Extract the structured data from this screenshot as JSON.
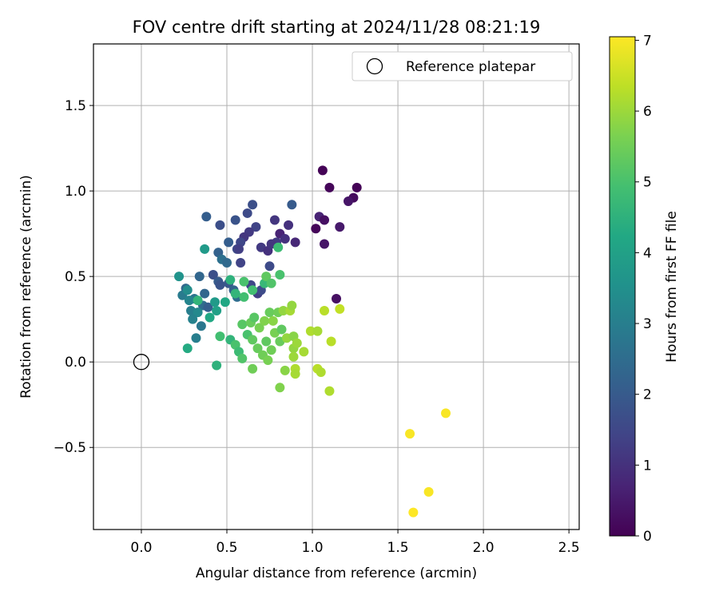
{
  "chart_data": {
    "type": "scatter",
    "title": "FOV centre drift starting at 2024/11/28 08:21:19",
    "xlabel": "Angular distance from reference (arcmin)",
    "ylabel": "Rotation from reference (arcmin)",
    "xlim": [
      -0.28,
      2.56
    ],
    "ylim": [
      -0.98,
      1.86
    ],
    "xticks": [
      0.0,
      0.5,
      1.0,
      1.5,
      2.0,
      2.5
    ],
    "xtick_labels": [
      "0.0",
      "0.5",
      "1.0",
      "1.5",
      "2.0",
      "2.5"
    ],
    "yticks": [
      -0.5,
      0.0,
      0.5,
      1.0,
      1.5
    ],
    "ytick_labels": [
      "−0.5",
      "0.0",
      "0.5",
      "1.0",
      "1.5"
    ],
    "grid": true,
    "legend": {
      "position": "top-right",
      "entries": [
        {
          "label": "Reference platepar",
          "marker": "open-circle"
        }
      ]
    },
    "reference_point": {
      "x": 0.0,
      "y": 0.0
    },
    "colorbar": {
      "label": "Hours from first FF file",
      "range": [
        0,
        7.05
      ],
      "ticks": [
        0,
        1,
        2,
        3,
        4,
        5,
        6,
        7
      ],
      "tick_labels": [
        "0",
        "1",
        "2",
        "3",
        "4",
        "5",
        "6",
        "7"
      ],
      "colormap": "viridis"
    },
    "points": [
      {
        "x": 1.06,
        "y": 1.12,
        "c": 0.05
      },
      {
        "x": 1.1,
        "y": 1.02,
        "c": 0.1
      },
      {
        "x": 1.26,
        "y": 1.02,
        "c": 0.05
      },
      {
        "x": 1.24,
        "y": 0.96,
        "c": 0.2
      },
      {
        "x": 1.21,
        "y": 0.94,
        "c": 0.4
      },
      {
        "x": 1.04,
        "y": 0.85,
        "c": 0.7
      },
      {
        "x": 1.07,
        "y": 0.83,
        "c": 0.3
      },
      {
        "x": 1.02,
        "y": 0.78,
        "c": 0.1
      },
      {
        "x": 1.16,
        "y": 0.79,
        "c": 0.5
      },
      {
        "x": 1.07,
        "y": 0.69,
        "c": 0.4
      },
      {
        "x": 0.9,
        "y": 0.7,
        "c": 0.8
      },
      {
        "x": 1.14,
        "y": 0.37,
        "c": 0.3
      },
      {
        "x": 0.86,
        "y": 0.8,
        "c": 1.0
      },
      {
        "x": 0.81,
        "y": 0.75,
        "c": 0.7
      },
      {
        "x": 0.84,
        "y": 0.72,
        "c": 1.0
      },
      {
        "x": 0.78,
        "y": 0.83,
        "c": 1.1
      },
      {
        "x": 0.79,
        "y": 0.7,
        "c": 1.2
      },
      {
        "x": 0.88,
        "y": 0.92,
        "c": 2.0
      },
      {
        "x": 0.65,
        "y": 0.92,
        "c": 1.7
      },
      {
        "x": 0.62,
        "y": 0.87,
        "c": 1.6
      },
      {
        "x": 0.67,
        "y": 0.79,
        "c": 1.4
      },
      {
        "x": 0.63,
        "y": 0.76,
        "c": 1.2
      },
      {
        "x": 0.6,
        "y": 0.73,
        "c": 1.1
      },
      {
        "x": 0.55,
        "y": 0.83,
        "c": 1.8
      },
      {
        "x": 0.46,
        "y": 0.8,
        "c": 1.7
      },
      {
        "x": 0.38,
        "y": 0.85,
        "c": 2.1
      },
      {
        "x": 0.7,
        "y": 0.67,
        "c": 1.2
      },
      {
        "x": 0.74,
        "y": 0.65,
        "c": 1.0
      },
      {
        "x": 0.76,
        "y": 0.69,
        "c": 1.1
      },
      {
        "x": 0.58,
        "y": 0.7,
        "c": 1.5
      },
      {
        "x": 0.56,
        "y": 0.66,
        "c": 1.6
      },
      {
        "x": 0.57,
        "y": 0.66,
        "c": 1.3
      },
      {
        "x": 0.51,
        "y": 0.7,
        "c": 2.1
      },
      {
        "x": 0.45,
        "y": 0.64,
        "c": 2.2
      },
      {
        "x": 0.47,
        "y": 0.6,
        "c": 2.6
      },
      {
        "x": 0.5,
        "y": 0.58,
        "c": 2.4
      },
      {
        "x": 0.58,
        "y": 0.58,
        "c": 1.4
      },
      {
        "x": 0.75,
        "y": 0.56,
        "c": 1.6
      },
      {
        "x": 0.42,
        "y": 0.51,
        "c": 1.7
      },
      {
        "x": 0.45,
        "y": 0.47,
        "c": 2.0
      },
      {
        "x": 0.46,
        "y": 0.45,
        "c": 1.8
      },
      {
        "x": 0.51,
        "y": 0.46,
        "c": 1.9
      },
      {
        "x": 0.54,
        "y": 0.42,
        "c": 2.2
      },
      {
        "x": 0.56,
        "y": 0.38,
        "c": 2.5
      },
      {
        "x": 0.64,
        "y": 0.45,
        "c": 1.5
      },
      {
        "x": 0.68,
        "y": 0.4,
        "c": 1.3
      },
      {
        "x": 0.7,
        "y": 0.42,
        "c": 1.6
      },
      {
        "x": 0.34,
        "y": 0.5,
        "c": 2.3
      },
      {
        "x": 0.37,
        "y": 0.4,
        "c": 2.3
      },
      {
        "x": 0.31,
        "y": 0.37,
        "c": 2.7
      },
      {
        "x": 0.36,
        "y": 0.33,
        "c": 2.5
      },
      {
        "x": 0.39,
        "y": 0.32,
        "c": 2.1
      },
      {
        "x": 0.26,
        "y": 0.43,
        "c": 2.4
      },
      {
        "x": 0.24,
        "y": 0.39,
        "c": 2.9
      },
      {
        "x": 0.28,
        "y": 0.36,
        "c": 3.2
      },
      {
        "x": 0.29,
        "y": 0.3,
        "c": 3.0
      },
      {
        "x": 0.33,
        "y": 0.29,
        "c": 3.3
      },
      {
        "x": 0.3,
        "y": 0.25,
        "c": 3.1
      },
      {
        "x": 0.35,
        "y": 0.21,
        "c": 2.8
      },
      {
        "x": 0.32,
        "y": 0.14,
        "c": 3.0
      },
      {
        "x": 0.22,
        "y": 0.5,
        "c": 3.6
      },
      {
        "x": 0.27,
        "y": 0.42,
        "c": 3.4
      },
      {
        "x": 0.43,
        "y": 0.35,
        "c": 3.8
      },
      {
        "x": 0.44,
        "y": 0.3,
        "c": 4.0
      },
      {
        "x": 0.4,
        "y": 0.26,
        "c": 4.2
      },
      {
        "x": 0.37,
        "y": 0.66,
        "c": 3.8
      },
      {
        "x": 0.27,
        "y": 0.08,
        "c": 4.3
      },
      {
        "x": 0.44,
        "y": -0.02,
        "c": 4.5
      },
      {
        "x": 0.33,
        "y": 0.36,
        "c": 4.6
      },
      {
        "x": 0.49,
        "y": 0.35,
        "c": 4.2
      },
      {
        "x": 0.52,
        "y": 0.48,
        "c": 4.5
      },
      {
        "x": 0.55,
        "y": 0.4,
        "c": 4.6
      },
      {
        "x": 0.6,
        "y": 0.38,
        "c": 4.9
      },
      {
        "x": 0.6,
        "y": 0.47,
        "c": 5.0
      },
      {
        "x": 0.65,
        "y": 0.42,
        "c": 4.9
      },
      {
        "x": 0.72,
        "y": 0.46,
        "c": 4.7
      },
      {
        "x": 0.73,
        "y": 0.5,
        "c": 5.3
      },
      {
        "x": 0.76,
        "y": 0.46,
        "c": 5.1
      },
      {
        "x": 0.81,
        "y": 0.51,
        "c": 5.0
      },
      {
        "x": 0.8,
        "y": 0.67,
        "c": 4.8
      },
      {
        "x": 0.46,
        "y": 0.15,
        "c": 4.9
      },
      {
        "x": 0.52,
        "y": 0.13,
        "c": 4.6
      },
      {
        "x": 0.55,
        "y": 0.1,
        "c": 5.0
      },
      {
        "x": 0.57,
        "y": 0.06,
        "c": 4.8
      },
      {
        "x": 0.59,
        "y": 0.22,
        "c": 5.2
      },
      {
        "x": 0.59,
        "y": 0.02,
        "c": 5.1
      },
      {
        "x": 0.62,
        "y": 0.16,
        "c": 5.0
      },
      {
        "x": 0.64,
        "y": 0.23,
        "c": 5.4
      },
      {
        "x": 0.65,
        "y": 0.13,
        "c": 5.3
      },
      {
        "x": 0.65,
        "y": -0.04,
        "c": 5.5
      },
      {
        "x": 0.66,
        "y": 0.26,
        "c": 5.2
      },
      {
        "x": 0.68,
        "y": 0.08,
        "c": 5.4
      },
      {
        "x": 0.69,
        "y": 0.2,
        "c": 5.6
      },
      {
        "x": 0.71,
        "y": 0.04,
        "c": 5.5
      },
      {
        "x": 0.72,
        "y": 0.24,
        "c": 5.7
      },
      {
        "x": 0.73,
        "y": 0.12,
        "c": 5.3
      },
      {
        "x": 0.74,
        "y": 0.01,
        "c": 5.6
      },
      {
        "x": 0.75,
        "y": 0.29,
        "c": 5.4
      },
      {
        "x": 0.76,
        "y": 0.07,
        "c": 5.5
      },
      {
        "x": 0.77,
        "y": 0.24,
        "c": 5.8
      },
      {
        "x": 0.78,
        "y": 0.17,
        "c": 5.6
      },
      {
        "x": 0.8,
        "y": 0.29,
        "c": 5.5
      },
      {
        "x": 0.81,
        "y": 0.12,
        "c": 5.4
      },
      {
        "x": 0.81,
        "y": -0.15,
        "c": 5.7
      },
      {
        "x": 0.82,
        "y": 0.19,
        "c": 5.3
      },
      {
        "x": 0.83,
        "y": 0.3,
        "c": 5.9
      },
      {
        "x": 0.84,
        "y": -0.05,
        "c": 5.8
      },
      {
        "x": 0.85,
        "y": 0.14,
        "c": 5.9
      },
      {
        "x": 0.87,
        "y": 0.3,
        "c": 6.1
      },
      {
        "x": 0.88,
        "y": 0.33,
        "c": 5.9
      },
      {
        "x": 0.89,
        "y": 0.15,
        "c": 5.8
      },
      {
        "x": 0.89,
        "y": 0.08,
        "c": 5.9
      },
      {
        "x": 0.89,
        "y": 0.03,
        "c": 6.0
      },
      {
        "x": 0.9,
        "y": -0.04,
        "c": 6.2
      },
      {
        "x": 0.9,
        "y": -0.07,
        "c": 6.1
      },
      {
        "x": 0.91,
        "y": 0.11,
        "c": 6.0
      },
      {
        "x": 0.95,
        "y": 0.06,
        "c": 6.1
      },
      {
        "x": 0.99,
        "y": 0.18,
        "c": 6.2
      },
      {
        "x": 1.03,
        "y": 0.18,
        "c": 6.1
      },
      {
        "x": 1.03,
        "y": -0.04,
        "c": 6.3
      },
      {
        "x": 1.05,
        "y": -0.06,
        "c": 6.2
      },
      {
        "x": 1.07,
        "y": 0.3,
        "c": 6.3
      },
      {
        "x": 1.1,
        "y": -0.17,
        "c": 6.2
      },
      {
        "x": 1.11,
        "y": 0.12,
        "c": 6.3
      },
      {
        "x": 1.16,
        "y": 0.31,
        "c": 6.4
      },
      {
        "x": 1.57,
        "y": -0.42,
        "c": 7.0
      },
      {
        "x": 1.78,
        "y": -0.3,
        "c": 7.0
      },
      {
        "x": 1.68,
        "y": -0.76,
        "c": 7.0
      },
      {
        "x": 1.59,
        "y": -0.88,
        "c": 7.05
      }
    ]
  }
}
